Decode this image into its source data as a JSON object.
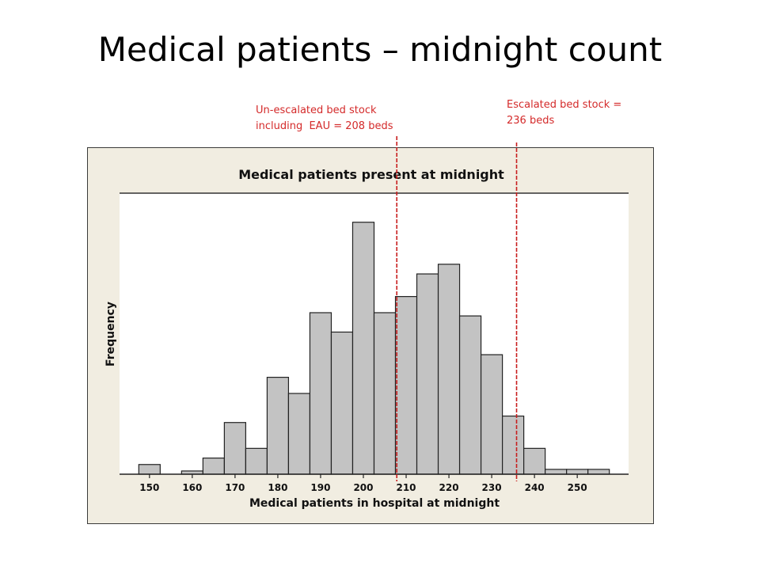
{
  "slide": {
    "title": "Medical patients – midnight count"
  },
  "annotations": {
    "unescalated": {
      "line1": "Un-escalated bed stock",
      "line2": "including  EAU = 208 beds",
      "value": 208
    },
    "escalated": {
      "line1": "Escalated bed stock =",
      "line2": "236 beds",
      "value": 236
    },
    "line_color": "#c81e1e"
  },
  "chart_data": {
    "type": "bar",
    "title": "Medical patients present at midnight",
    "xlabel": "Medical patients in hospital at midnight",
    "ylabel": "Frequency",
    "bin_width": 5,
    "bins": [
      {
        "x": 150,
        "value": 3
      },
      {
        "x": 155,
        "value": 0
      },
      {
        "x": 160,
        "value": 1
      },
      {
        "x": 165,
        "value": 5
      },
      {
        "x": 170,
        "value": 16
      },
      {
        "x": 175,
        "value": 8
      },
      {
        "x": 180,
        "value": 30
      },
      {
        "x": 185,
        "value": 25
      },
      {
        "x": 190,
        "value": 50
      },
      {
        "x": 195,
        "value": 44
      },
      {
        "x": 200,
        "value": 78
      },
      {
        "x": 205,
        "value": 50
      },
      {
        "x": 210,
        "value": 55
      },
      {
        "x": 215,
        "value": 62
      },
      {
        "x": 220,
        "value": 65
      },
      {
        "x": 225,
        "value": 49
      },
      {
        "x": 230,
        "value": 37
      },
      {
        "x": 235,
        "value": 18
      },
      {
        "x": 240,
        "value": 8
      },
      {
        "x": 245,
        "value": 1.5
      },
      {
        "x": 250,
        "value": 1.5
      },
      {
        "x": 255,
        "value": 1.5
      }
    ],
    "xticks": [
      150,
      160,
      170,
      180,
      190,
      200,
      210,
      220,
      230,
      240,
      250
    ],
    "xlim": [
      143,
      262
    ],
    "ylim": [
      0,
      87
    ],
    "yticks_shown": false,
    "grid": false,
    "legend": "none",
    "bar_color": "#c3c3c3",
    "bar_edge_color": "#222222",
    "plot_background": "#ffffff",
    "frame_background": "#f1ede1"
  }
}
